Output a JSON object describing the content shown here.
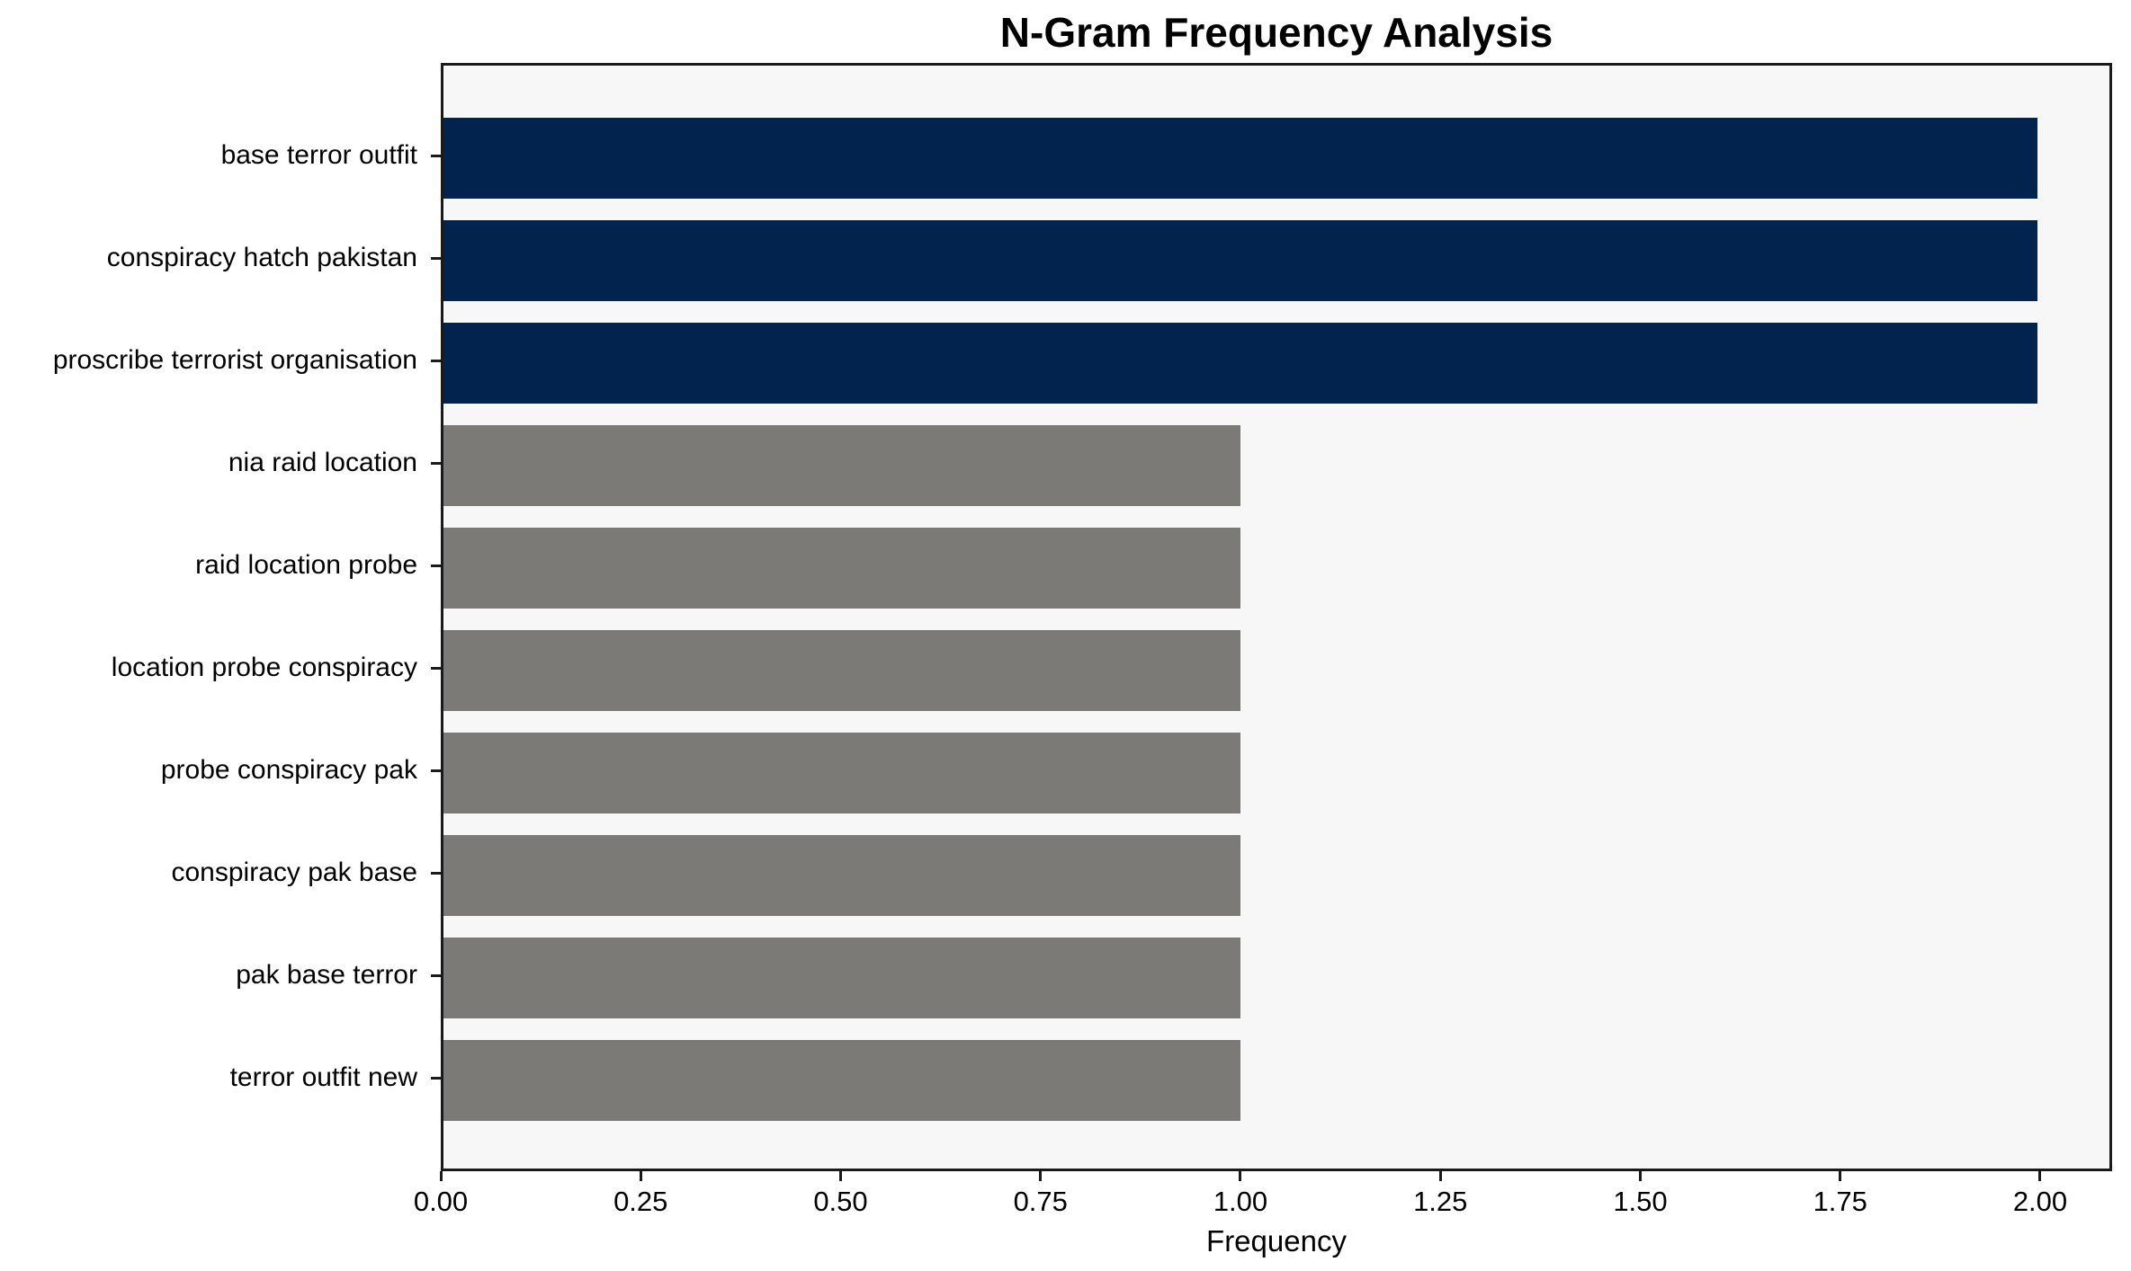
{
  "chart_data": {
    "type": "bar",
    "orientation": "horizontal",
    "title": "N-Gram Frequency Analysis",
    "xlabel": "Frequency",
    "ylabel": "",
    "categories": [
      "base terror outfit",
      "conspiracy hatch pakistan",
      "proscribe terrorist organisation",
      "nia raid location",
      "raid location probe",
      "location probe conspiracy",
      "probe conspiracy pak",
      "conspiracy pak base",
      "pak base terror",
      "terror outfit new"
    ],
    "values": [
      2,
      2,
      2,
      1,
      1,
      1,
      1,
      1,
      1,
      1
    ],
    "bar_colors": [
      "#02234e",
      "#02234e",
      "#02234e",
      "#7b7a77",
      "#7b7a77",
      "#7b7a77",
      "#7b7a77",
      "#7b7a77",
      "#7b7a77",
      "#7b7a77"
    ],
    "xlim": [
      0,
      2.09
    ],
    "xticks": [
      0.0,
      0.25,
      0.5,
      0.75,
      1.0,
      1.25,
      1.5,
      1.75,
      2.0
    ],
    "xtick_labels": [
      "0.00",
      "0.25",
      "0.50",
      "0.75",
      "1.00",
      "1.25",
      "1.50",
      "1.75",
      "2.00"
    ],
    "grid": false,
    "legend": "none",
    "colors": {
      "highlight_bar": "#02234e",
      "default_bar": "#7b7a77",
      "plot_background": "#f7f7f7",
      "spine": "#1a1a1a",
      "text": "#000000"
    }
  }
}
